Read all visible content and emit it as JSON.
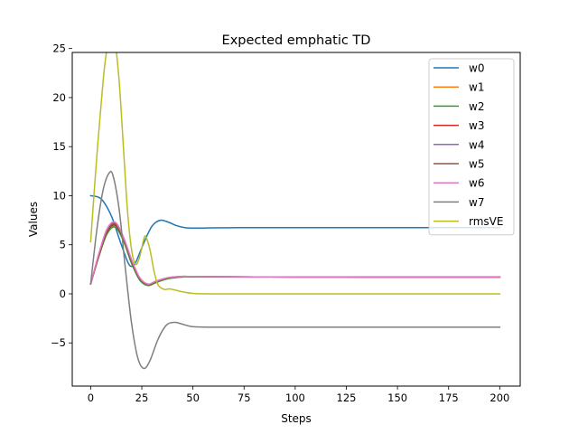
{
  "chart_data": {
    "type": "line",
    "title": "Expected emphatic TD",
    "xlabel": "Steps",
    "ylabel": "Values",
    "xlim": [
      -9,
      210
    ],
    "ylim": [
      -9.4,
      24.6
    ],
    "xticks": [
      0,
      25,
      50,
      75,
      100,
      125,
      150,
      175,
      200
    ],
    "yticks": [
      -5,
      0,
      5,
      10,
      15,
      20,
      25
    ],
    "grid": false,
    "legend_position": "upper-right",
    "series": [
      {
        "name": "w0",
        "color": "#1f77b4",
        "points": [
          [
            0,
            10.0
          ],
          [
            5,
            9.7
          ],
          [
            10,
            8.0
          ],
          [
            14,
            5.6
          ],
          [
            18,
            3.3
          ],
          [
            20,
            2.8
          ],
          [
            22,
            3.2
          ],
          [
            26,
            5.2
          ],
          [
            30,
            6.9
          ],
          [
            34,
            7.5
          ],
          [
            38,
            7.3
          ],
          [
            42,
            6.95
          ],
          [
            46,
            6.75
          ],
          [
            50,
            6.7
          ],
          [
            60,
            6.72
          ],
          [
            80,
            6.75
          ],
          [
            100,
            6.75
          ],
          [
            150,
            6.75
          ],
          [
            200,
            6.75
          ]
        ]
      },
      {
        "name": "w1",
        "color": "#ff7f0e",
        "points": [
          [
            0,
            1.0
          ],
          [
            4,
            3.8
          ],
          [
            8,
            6.2
          ],
          [
            12,
            6.9
          ],
          [
            16,
            5.5
          ],
          [
            20,
            3.2
          ],
          [
            24,
            1.5
          ],
          [
            28,
            0.9
          ],
          [
            32,
            1.2
          ],
          [
            38,
            1.6
          ],
          [
            45,
            1.75
          ],
          [
            50,
            1.75
          ],
          [
            80,
            1.72
          ],
          [
            100,
            1.72
          ],
          [
            150,
            1.7
          ],
          [
            200,
            1.7
          ]
        ]
      },
      {
        "name": "w2",
        "color": "#2ca02c",
        "points": [
          [
            0,
            1.0
          ],
          [
            4,
            3.8
          ],
          [
            8,
            6.1
          ],
          [
            12,
            6.8
          ],
          [
            16,
            5.4
          ],
          [
            20,
            3.1
          ],
          [
            24,
            1.4
          ],
          [
            28,
            0.85
          ],
          [
            32,
            1.15
          ],
          [
            38,
            1.55
          ],
          [
            45,
            1.72
          ],
          [
            50,
            1.73
          ],
          [
            80,
            1.72
          ],
          [
            100,
            1.72
          ],
          [
            150,
            1.7
          ],
          [
            200,
            1.7
          ]
        ]
      },
      {
        "name": "w3",
        "color": "#d62728",
        "points": [
          [
            0,
            1.0
          ],
          [
            4,
            3.9
          ],
          [
            8,
            6.3
          ],
          [
            12,
            7.0
          ],
          [
            16,
            5.6
          ],
          [
            20,
            3.3
          ],
          [
            24,
            1.55
          ],
          [
            28,
            0.95
          ],
          [
            32,
            1.25
          ],
          [
            38,
            1.62
          ],
          [
            45,
            1.76
          ],
          [
            50,
            1.76
          ],
          [
            80,
            1.73
          ],
          [
            100,
            1.72
          ],
          [
            150,
            1.7
          ],
          [
            200,
            1.7
          ]
        ]
      },
      {
        "name": "w4",
        "color": "#9467bd",
        "points": [
          [
            0,
            1.0
          ],
          [
            4,
            4.0
          ],
          [
            8,
            6.5
          ],
          [
            12,
            7.2
          ],
          [
            16,
            5.7
          ],
          [
            20,
            3.4
          ],
          [
            24,
            1.6
          ],
          [
            28,
            0.95
          ],
          [
            32,
            1.3
          ],
          [
            38,
            1.65
          ],
          [
            45,
            1.78
          ],
          [
            50,
            1.77
          ],
          [
            80,
            1.73
          ],
          [
            100,
            1.72
          ],
          [
            150,
            1.7
          ],
          [
            200,
            1.7
          ]
        ]
      },
      {
        "name": "w5",
        "color": "#8c564b",
        "points": [
          [
            0,
            1.0
          ],
          [
            4,
            3.9
          ],
          [
            8,
            6.4
          ],
          [
            12,
            7.1
          ],
          [
            16,
            5.65
          ],
          [
            20,
            3.35
          ],
          [
            24,
            1.55
          ],
          [
            28,
            0.95
          ],
          [
            32,
            1.28
          ],
          [
            38,
            1.63
          ],
          [
            45,
            1.77
          ],
          [
            50,
            1.76
          ],
          [
            80,
            1.73
          ],
          [
            100,
            1.72
          ],
          [
            150,
            1.7
          ],
          [
            200,
            1.7
          ]
        ]
      },
      {
        "name": "w6",
        "color": "#e377c2",
        "points": [
          [
            0,
            1.0
          ],
          [
            4,
            4.1
          ],
          [
            8,
            6.6
          ],
          [
            12,
            7.3
          ],
          [
            16,
            5.8
          ],
          [
            20,
            3.5
          ],
          [
            24,
            1.65
          ],
          [
            28,
            1.0
          ],
          [
            32,
            1.3
          ],
          [
            38,
            1.66
          ],
          [
            45,
            1.78
          ],
          [
            50,
            1.77
          ],
          [
            80,
            1.73
          ],
          [
            100,
            1.72
          ],
          [
            150,
            1.7
          ],
          [
            200,
            1.7
          ]
        ]
      },
      {
        "name": "w7",
        "color": "#7f7f7f",
        "points": [
          [
            0,
            1.0
          ],
          [
            3,
            6.5
          ],
          [
            6,
            10.5
          ],
          [
            9,
            12.3
          ],
          [
            11,
            12.0
          ],
          [
            14,
            8.5
          ],
          [
            17,
            2.5
          ],
          [
            20,
            -3.0
          ],
          [
            23,
            -6.5
          ],
          [
            26,
            -7.6
          ],
          [
            29,
            -6.8
          ],
          [
            33,
            -4.6
          ],
          [
            37,
            -3.2
          ],
          [
            41,
            -2.9
          ],
          [
            45,
            -3.1
          ],
          [
            50,
            -3.35
          ],
          [
            60,
            -3.4
          ],
          [
            100,
            -3.4
          ],
          [
            150,
            -3.4
          ],
          [
            200,
            -3.4
          ]
        ]
      },
      {
        "name": "rmsVE",
        "color": "#bcbd22",
        "points": [
          [
            0,
            5.3
          ],
          [
            3,
            14.0
          ],
          [
            6,
            21.5
          ],
          [
            8,
            25.0
          ],
          [
            10,
            26.4
          ],
          [
            12,
            25.5
          ],
          [
            14,
            21.5
          ],
          [
            16,
            15.0
          ],
          [
            18,
            8.5
          ],
          [
            20,
            4.5
          ],
          [
            22,
            3.0
          ],
          [
            24,
            3.8
          ],
          [
            26,
            5.6
          ],
          [
            27,
            5.8
          ],
          [
            29,
            4.5
          ],
          [
            31,
            2.3
          ],
          [
            33,
            0.9
          ],
          [
            36,
            0.45
          ],
          [
            38,
            0.5
          ],
          [
            40,
            0.45
          ],
          [
            45,
            0.2
          ],
          [
            50,
            0.05
          ],
          [
            60,
            0.0
          ],
          [
            100,
            0.0
          ],
          [
            150,
            0.0
          ],
          [
            200,
            0.0
          ]
        ]
      }
    ]
  }
}
